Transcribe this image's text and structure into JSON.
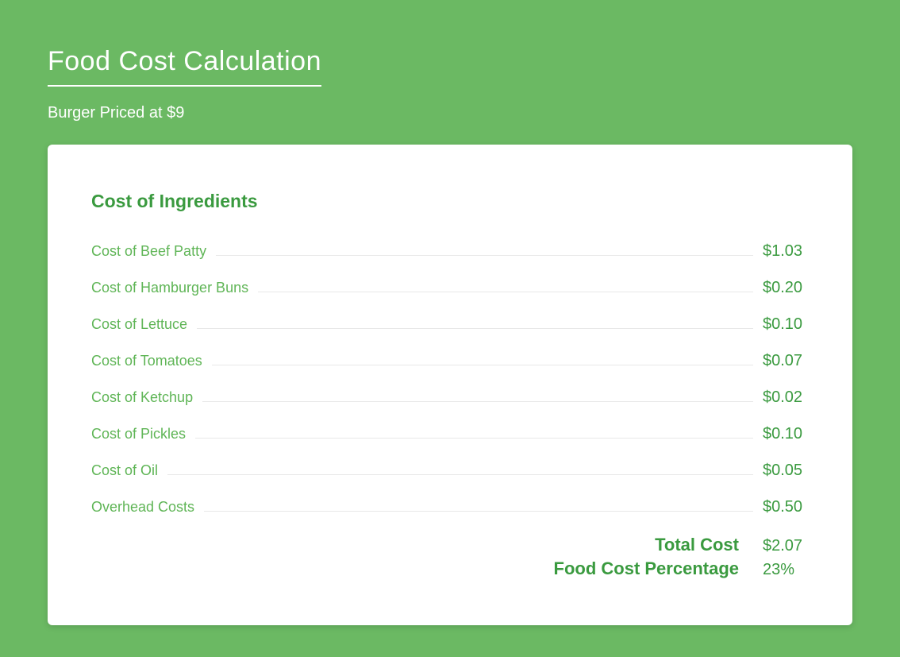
{
  "page": {
    "background_color": "#6bb963",
    "card_background": "#ffffff",
    "title": "Food Cost Calculation",
    "title_color": "#ffffff",
    "subtitle": "Burger Priced at $9",
    "subtitle_color": "#ffffff"
  },
  "section": {
    "title": "Cost of Ingredients",
    "title_color": "#3a9a3f",
    "label_color": "#5fb556",
    "value_color": "#3a9a3f"
  },
  "ingredients": [
    {
      "label": "Cost of Beef Patty",
      "value": "$1.03"
    },
    {
      "label": "Cost of Hamburger Buns",
      "value": "$0.20"
    },
    {
      "label": "Cost of  Lettuce",
      "value": "$0.10"
    },
    {
      "label": "Cost of Tomatoes",
      "value": "$0.07"
    },
    {
      "label": "Cost of Ketchup",
      "value": "$0.02"
    },
    {
      "label": "Cost of Pickles",
      "value": "$0.10"
    },
    {
      "label": "Cost of Oil",
      "value": "$0.05"
    },
    {
      "label": "Overhead Costs",
      "value": "$0.50"
    }
  ],
  "summary": {
    "total_label": "Total Cost",
    "total_value": "$2.07",
    "percentage_label": "Food Cost Percentage",
    "percentage_value": "23%"
  }
}
